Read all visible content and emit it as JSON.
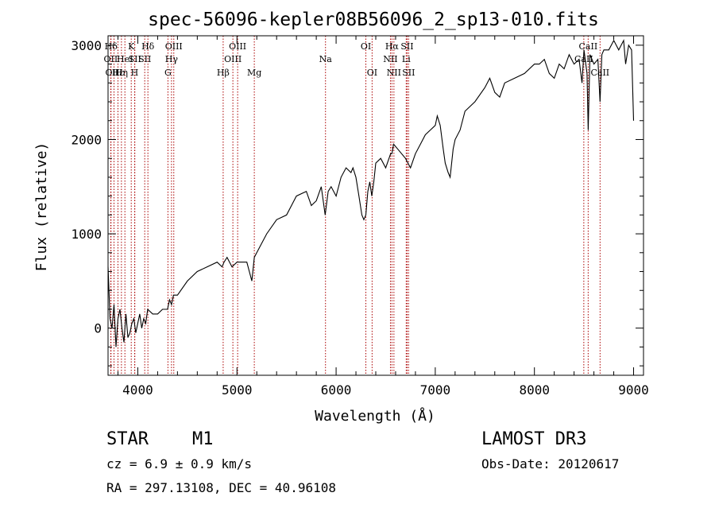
{
  "chart_data": {
    "type": "line",
    "title": "spec-56096-kepler08B56096_2_sp13-010.fits",
    "xlabel": "Wavelength (Å)",
    "ylabel": "Flux (relative)",
    "xlim": [
      3700,
      9100
    ],
    "ylim": [
      -500,
      3100
    ],
    "x_ticks": [
      4000,
      5000,
      6000,
      7000,
      8000,
      9000
    ],
    "y_ticks": [
      0,
      1000,
      2000,
      3000
    ],
    "x_tick_labels": [
      "4000",
      "5000",
      "6000",
      "7000",
      "8000",
      "9000"
    ],
    "y_tick_labels": [
      "0",
      "1000",
      "2000",
      "3000"
    ],
    "grid": false,
    "line_color": "#000000",
    "marker_color": "#aa0000",
    "series": [
      {
        "name": "spectrum",
        "x": [
          3700,
          3720,
          3740,
          3760,
          3780,
          3800,
          3820,
          3840,
          3860,
          3880,
          3900,
          3920,
          3940,
          3960,
          3980,
          4000,
          4020,
          4040,
          4060,
          4080,
          4100,
          4150,
          4200,
          4250,
          4300,
          4320,
          4340,
          4360,
          4400,
          4500,
          4600,
          4700,
          4800,
          4850,
          4870,
          4900,
          4950,
          5000,
          5100,
          5150,
          5175,
          5200,
          5300,
          5400,
          5500,
          5600,
          5700,
          5750,
          5800,
          5850,
          5890,
          5920,
          5950,
          6000,
          6050,
          6100,
          6150,
          6170,
          6200,
          6230,
          6260,
          6280,
          6300,
          6320,
          6340,
          6360,
          6380,
          6400,
          6450,
          6500,
          6550,
          6563,
          6580,
          6620,
          6660,
          6700,
          6750,
          6800,
          6850,
          6900,
          6950,
          7000,
          7020,
          7050,
          7080,
          7100,
          7130,
          7150,
          7180,
          7200,
          7250,
          7300,
          7400,
          7500,
          7550,
          7600,
          7650,
          7700,
          7800,
          7900,
          8000,
          8050,
          8100,
          8150,
          8200,
          8250,
          8300,
          8350,
          8400,
          8450,
          8480,
          8500,
          8530,
          8542,
          8560,
          8600,
          8640,
          8662,
          8680,
          8700,
          8750,
          8800,
          8850,
          8900,
          8920,
          8950,
          8980,
          9000
        ],
        "y": [
          650,
          100,
          0,
          250,
          -200,
          100,
          200,
          0,
          -150,
          150,
          -100,
          -50,
          50,
          100,
          -50,
          50,
          150,
          0,
          100,
          50,
          200,
          150,
          150,
          200,
          200,
          300,
          250,
          350,
          350,
          500,
          600,
          650,
          700,
          650,
          700,
          750,
          650,
          700,
          700,
          500,
          750,
          800,
          1000,
          1150,
          1200,
          1400,
          1450,
          1300,
          1350,
          1500,
          1200,
          1450,
          1500,
          1400,
          1600,
          1700,
          1650,
          1700,
          1600,
          1400,
          1200,
          1150,
          1200,
          1450,
          1550,
          1400,
          1550,
          1750,
          1800,
          1700,
          1850,
          1850,
          1950,
          1900,
          1850,
          1800,
          1700,
          1850,
          1950,
          2050,
          2100,
          2150,
          2250,
          2150,
          1900,
          1750,
          1650,
          1600,
          1900,
          2000,
          2100,
          2300,
          2400,
          2550,
          2650,
          2500,
          2450,
          2600,
          2650,
          2700,
          2800,
          2800,
          2850,
          2700,
          2650,
          2800,
          2750,
          2900,
          2800,
          2850,
          2600,
          2950,
          2700,
          2100,
          2900,
          2800,
          2850,
          2400,
          2900,
          2950,
          2950,
          3050,
          2950,
          3050,
          2800,
          3000,
          2950,
          2200
        ]
      }
    ],
    "line_markers": [
      {
        "label": "Hδ",
        "x": 3730,
        "row": 0
      },
      {
        "label": "OII",
        "x": 3727,
        "row": 1
      },
      {
        "label": "OIII",
        "x": 3760,
        "row": 2
      },
      {
        "label": "Hε",
        "x": 3800,
        "row": 2
      },
      {
        "label": "Hη",
        "x": 3835,
        "row": 2
      },
      {
        "label": "HeI",
        "x": 3870,
        "row": 1
      },
      {
        "label": "K",
        "x": 3934,
        "row": 0
      },
      {
        "label": "SII",
        "x": 3970,
        "row": 1
      },
      {
        "label": "H",
        "x": 3968,
        "row": 2
      },
      {
        "label": "Hδ",
        "x": 4102,
        "row": 0
      },
      {
        "label": "SII",
        "x": 4070,
        "row": 1
      },
      {
        "label": "OIII",
        "x": 4363,
        "row": 0
      },
      {
        "label": "Hγ",
        "x": 4340,
        "row": 1
      },
      {
        "label": "G",
        "x": 4304,
        "row": 2
      },
      {
        "label": "Hβ",
        "x": 4861,
        "row": 2
      },
      {
        "label": "OIII",
        "x": 4959,
        "row": 1
      },
      {
        "label": "OIII",
        "x": 5007,
        "row": 0
      },
      {
        "label": "Mg",
        "x": 5175,
        "row": 2
      },
      {
        "label": "Na",
        "x": 5893,
        "row": 1
      },
      {
        "label": "OI",
        "x": 6300,
        "row": 0
      },
      {
        "label": "OI",
        "x": 6363,
        "row": 2
      },
      {
        "label": "Hα",
        "x": 6563,
        "row": 0
      },
      {
        "label": "NII",
        "x": 6548,
        "row": 1
      },
      {
        "label": "NII",
        "x": 6583,
        "row": 2
      },
      {
        "label": "SII",
        "x": 6716,
        "row": 0
      },
      {
        "label": "Li",
        "x": 6707,
        "row": 1
      },
      {
        "label": "SII",
        "x": 6731,
        "row": 2
      },
      {
        "label": "CaII",
        "x": 8542,
        "row": 0
      },
      {
        "label": "CaII",
        "x": 8498,
        "row": 1
      },
      {
        "label": "CaII",
        "x": 8662,
        "row": 2
      }
    ]
  },
  "info": {
    "class_label": "STAR",
    "subclass": "M1",
    "cz": "cz = 6.9 ± 0.9 km/s",
    "coords": "RA = 297.13108, DEC =  40.96108",
    "survey": "LAMOST DR3",
    "obs_date": "Obs-Date: 20120617"
  }
}
